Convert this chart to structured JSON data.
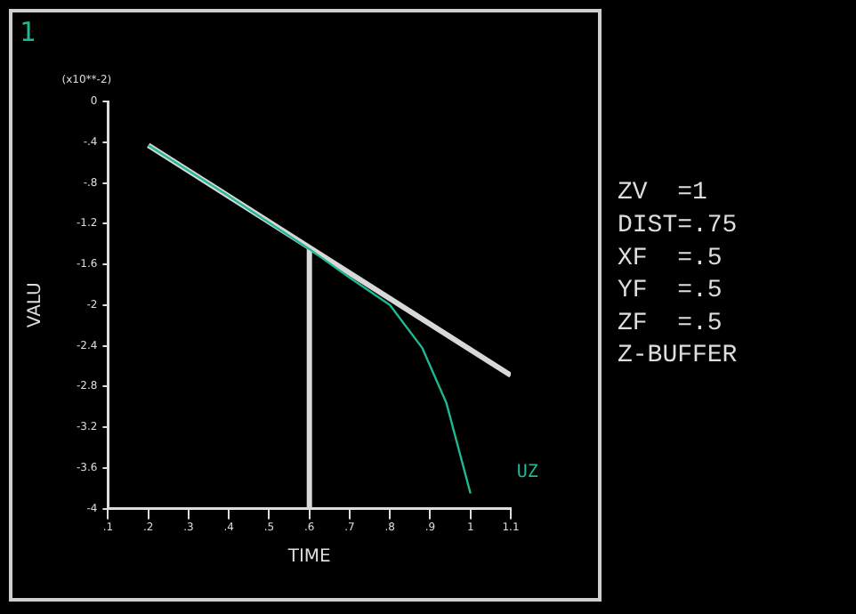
{
  "chart_data": {
    "type": "line",
    "xlabel": "TIME",
    "ylabel": "VALU",
    "annotations": [
      "1",
      "(x10**-2)",
      "ZV  =1",
      "DIST=.75",
      "XF  =.5",
      "YF  =.5",
      "ZF  =.5",
      "Z-BUFFER"
    ],
    "xlim": [
      0.1,
      1.1
    ],
    "xticks": [
      {
        "value": 0.1,
        "label": ".1"
      },
      {
        "value": 0.2,
        "label": ".2"
      },
      {
        "value": 0.3,
        "label": ".3"
      },
      {
        "value": 0.4,
        "label": ".4"
      },
      {
        "value": 0.5,
        "label": ".5"
      },
      {
        "value": 0.6,
        "label": ".6"
      },
      {
        "value": 0.7,
        "label": ".7"
      },
      {
        "value": 0.8,
        "label": ".8"
      },
      {
        "value": 0.9,
        "label": ".9"
      },
      1,
      {
        "value": 1.1,
        "label": "1.1"
      }
    ],
    "ylim": [
      -4,
      0
    ],
    "yticks": [
      0,
      {
        "value": -0.4,
        "label": "-.4"
      },
      {
        "value": -0.8,
        "label": "-.8"
      },
      -1.2,
      -1.6,
      -2,
      -2.4,
      -2.8,
      -3.2,
      -3.6,
      -4
    ],
    "grid": false,
    "legend": false,
    "marker": "none",
    "line_style": "solid",
    "series": [
      {
        "name": "UZ",
        "color": "#1fb894",
        "x": [
          0.2,
          0.4,
          0.6,
          0.7,
          0.8,
          0.88,
          0.94,
          1.0
        ],
        "values": [
          -0.43,
          -0.93,
          -1.45,
          -1.73,
          -2.0,
          -2.42,
          -2.96,
          -3.85
        ]
      },
      {
        "color": "#d8d8d8",
        "x": [
          0.2,
          1.1
        ],
        "values": [
          -0.43,
          -2.69
        ]
      },
      {
        "color": "#d8d8d8",
        "x": [
          0.6,
          0.6
        ],
        "values": [
          -4,
          -1.45
        ]
      }
    ]
  }
}
